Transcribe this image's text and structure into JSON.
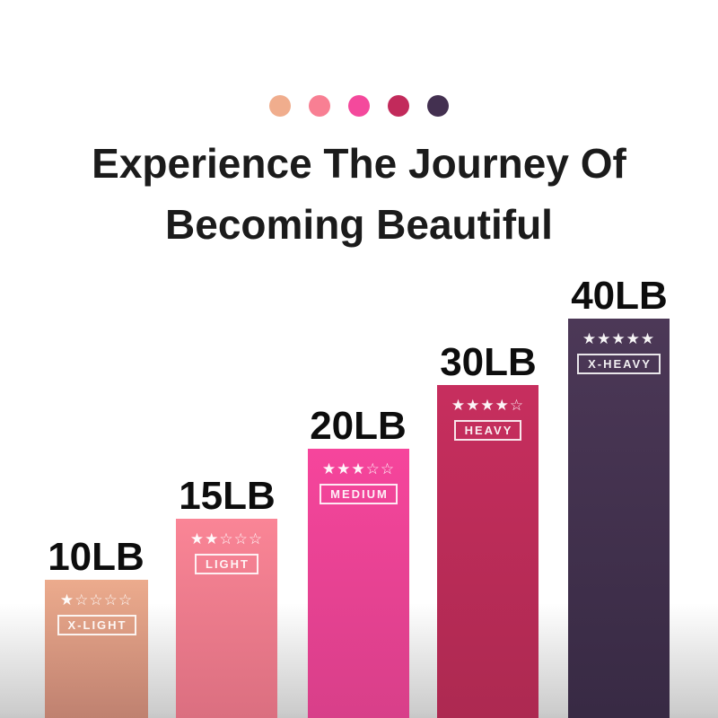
{
  "title": {
    "line1": "Experience The Journey Of",
    "line2": "Becoming Beautiful",
    "color": "#1b1b1b"
  },
  "palette_dots": [
    {
      "name": "x-light-dot",
      "color": "#f0ad8d"
    },
    {
      "name": "light-dot",
      "color": "#f87f93"
    },
    {
      "name": "medium-dot",
      "color": "#f4499c"
    },
    {
      "name": "heavy-dot",
      "color": "#c22a5b"
    },
    {
      "name": "x-heavy-dot",
      "color": "#433050"
    }
  ],
  "background": {
    "top": "#ffffff",
    "bottom": "#c7c7c7"
  },
  "chart_data": {
    "type": "bar",
    "title": "Experience The Journey Of Becoming Beautiful",
    "categories": [
      "10LB",
      "15LB",
      "20LB",
      "30LB",
      "40LB"
    ],
    "values": [
      10,
      15,
      20,
      30,
      40
    ],
    "bar_labels": [
      "X-LIGHT",
      "LIGHT",
      "MEDIUM",
      "HEAVY",
      "X-HEAVY"
    ],
    "star_ratings": [
      1,
      2,
      3,
      4,
      5
    ],
    "bar_colors": [
      "#ecab8d",
      "#fa8596",
      "#f6459c",
      "#c72e5e",
      "#4c3857"
    ],
    "xlabel": "",
    "ylabel": "",
    "grid": false,
    "legend_position": "none"
  },
  "bars": [
    {
      "weight": "10LB",
      "stars": "★☆☆☆☆",
      "level": "X-LIGHT",
      "color_top": "#ecab8d",
      "color_bottom": "#bf8170"
    },
    {
      "weight": "15LB",
      "stars": "★★☆☆☆",
      "level": "LIGHT",
      "color_top": "#fa8596",
      "color_bottom": "#db6f80"
    },
    {
      "weight": "20LB",
      "stars": "★★★☆☆",
      "level": "MEDIUM",
      "color_top": "#f6459c",
      "color_bottom": "#d83f89"
    },
    {
      "weight": "30LB",
      "stars": "★★★★☆",
      "level": "HEAVY",
      "color_top": "#c72e5e",
      "color_bottom": "#ad2951"
    },
    {
      "weight": "40LB",
      "stars": "★★★★★",
      "level": "X-HEAVY",
      "color_top": "#4c3857",
      "color_bottom": "#382a44"
    }
  ]
}
